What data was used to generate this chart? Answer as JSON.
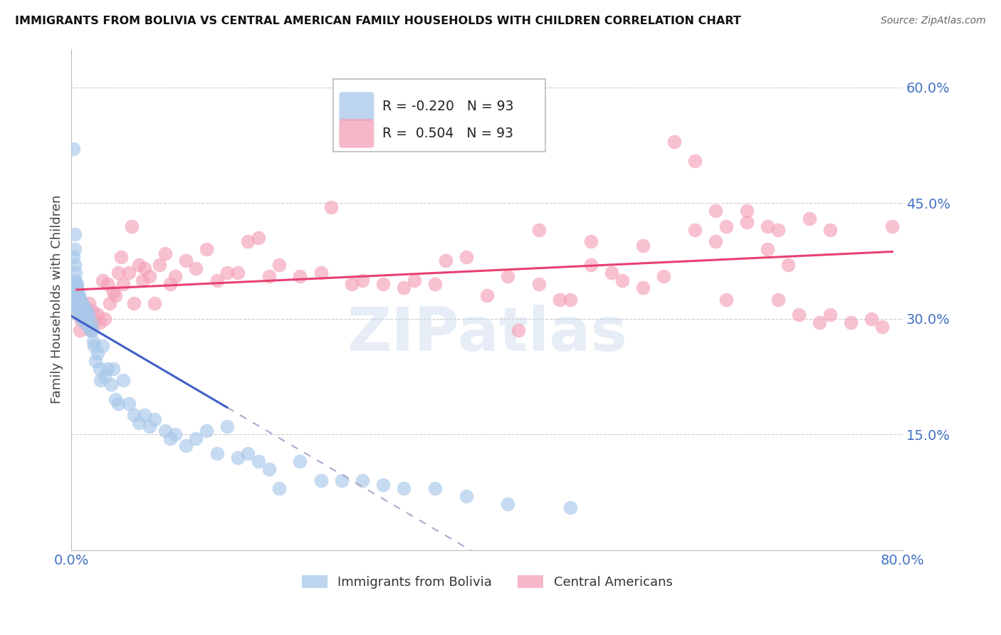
{
  "title": "IMMIGRANTS FROM BOLIVIA VS CENTRAL AMERICAN FAMILY HOUSEHOLDS WITH CHILDREN CORRELATION CHART",
  "source": "Source: ZipAtlas.com",
  "ylabel": "Family Households with Children",
  "yticks": [
    0.0,
    0.15,
    0.3,
    0.45,
    0.6
  ],
  "ytick_labels": [
    "",
    "15.0%",
    "30.0%",
    "45.0%",
    "60.0%"
  ],
  "xlim": [
    0.0,
    0.8
  ],
  "ylim": [
    0.0,
    0.65
  ],
  "bolivia_color": "#a8c8ea",
  "central_color": "#f4a0b8",
  "bolivia_line_color": "#4060c8",
  "central_line_color": "#e84070",
  "bolivia_R": -0.22,
  "bolivia_N": 93,
  "central_R": 0.504,
  "central_N": 93,
  "watermark": "ZIPatlas",
  "legend_bolivia": "Immigrants from Bolivia",
  "legend_central": "Central Americans",
  "bolivia_scatter_x": [
    0.002,
    0.002,
    0.003,
    0.003,
    0.003,
    0.004,
    0.004,
    0.004,
    0.004,
    0.004,
    0.005,
    0.005,
    0.005,
    0.005,
    0.005,
    0.005,
    0.005,
    0.006,
    0.006,
    0.006,
    0.006,
    0.006,
    0.007,
    0.007,
    0.007,
    0.007,
    0.008,
    0.008,
    0.008,
    0.008,
    0.009,
    0.009,
    0.009,
    0.01,
    0.01,
    0.01,
    0.011,
    0.011,
    0.012,
    0.012,
    0.013,
    0.013,
    0.014,
    0.015,
    0.015,
    0.016,
    0.017,
    0.018,
    0.019,
    0.02,
    0.021,
    0.022,
    0.023,
    0.025,
    0.027,
    0.028,
    0.03,
    0.032,
    0.035,
    0.038,
    0.04,
    0.042,
    0.045,
    0.05,
    0.055,
    0.06,
    0.065,
    0.07,
    0.075,
    0.08,
    0.09,
    0.095,
    0.1,
    0.11,
    0.12,
    0.13,
    0.14,
    0.15,
    0.16,
    0.17,
    0.18,
    0.19,
    0.2,
    0.22,
    0.24,
    0.26,
    0.28,
    0.3,
    0.32,
    0.35,
    0.38,
    0.42,
    0.48
  ],
  "bolivia_scatter_y": [
    0.52,
    0.38,
    0.41,
    0.39,
    0.37,
    0.36,
    0.35,
    0.345,
    0.34,
    0.33,
    0.345,
    0.34,
    0.335,
    0.33,
    0.325,
    0.32,
    0.315,
    0.335,
    0.325,
    0.32,
    0.315,
    0.31,
    0.33,
    0.325,
    0.32,
    0.315,
    0.325,
    0.32,
    0.31,
    0.305,
    0.325,
    0.315,
    0.305,
    0.32,
    0.31,
    0.3,
    0.315,
    0.305,
    0.315,
    0.305,
    0.31,
    0.295,
    0.3,
    0.31,
    0.295,
    0.305,
    0.29,
    0.285,
    0.295,
    0.285,
    0.27,
    0.265,
    0.245,
    0.255,
    0.235,
    0.22,
    0.265,
    0.225,
    0.235,
    0.215,
    0.235,
    0.195,
    0.19,
    0.22,
    0.19,
    0.175,
    0.165,
    0.175,
    0.16,
    0.17,
    0.155,
    0.145,
    0.15,
    0.135,
    0.145,
    0.155,
    0.125,
    0.16,
    0.12,
    0.125,
    0.115,
    0.105,
    0.08,
    0.115,
    0.09,
    0.09,
    0.09,
    0.085,
    0.08,
    0.08,
    0.07,
    0.06,
    0.055
  ],
  "central_scatter_x": [
    0.005,
    0.007,
    0.008,
    0.009,
    0.01,
    0.012,
    0.013,
    0.015,
    0.017,
    0.018,
    0.02,
    0.022,
    0.025,
    0.027,
    0.03,
    0.032,
    0.035,
    0.037,
    0.04,
    0.042,
    0.045,
    0.048,
    0.05,
    0.055,
    0.058,
    0.06,
    0.065,
    0.068,
    0.07,
    0.075,
    0.08,
    0.085,
    0.09,
    0.095,
    0.1,
    0.11,
    0.12,
    0.13,
    0.14,
    0.15,
    0.16,
    0.17,
    0.18,
    0.19,
    0.2,
    0.22,
    0.24,
    0.25,
    0.27,
    0.28,
    0.3,
    0.32,
    0.33,
    0.35,
    0.36,
    0.38,
    0.4,
    0.42,
    0.43,
    0.45,
    0.47,
    0.48,
    0.5,
    0.52,
    0.53,
    0.55,
    0.57,
    0.58,
    0.6,
    0.62,
    0.63,
    0.65,
    0.67,
    0.68,
    0.7,
    0.72,
    0.73,
    0.75,
    0.77,
    0.78,
    0.63,
    0.68,
    0.73,
    0.71,
    0.69,
    0.67,
    0.65,
    0.62,
    0.6,
    0.55,
    0.5,
    0.45,
    0.79
  ],
  "central_scatter_y": [
    0.325,
    0.31,
    0.285,
    0.3,
    0.32,
    0.3,
    0.295,
    0.31,
    0.32,
    0.285,
    0.31,
    0.295,
    0.305,
    0.295,
    0.35,
    0.3,
    0.345,
    0.32,
    0.335,
    0.33,
    0.36,
    0.38,
    0.345,
    0.36,
    0.42,
    0.32,
    0.37,
    0.35,
    0.365,
    0.355,
    0.32,
    0.37,
    0.385,
    0.345,
    0.355,
    0.375,
    0.365,
    0.39,
    0.35,
    0.36,
    0.36,
    0.4,
    0.405,
    0.355,
    0.37,
    0.355,
    0.36,
    0.445,
    0.345,
    0.35,
    0.345,
    0.34,
    0.35,
    0.345,
    0.375,
    0.38,
    0.33,
    0.355,
    0.285,
    0.345,
    0.325,
    0.325,
    0.37,
    0.36,
    0.35,
    0.34,
    0.355,
    0.53,
    0.505,
    0.44,
    0.325,
    0.44,
    0.42,
    0.325,
    0.305,
    0.295,
    0.305,
    0.295,
    0.3,
    0.29,
    0.42,
    0.415,
    0.415,
    0.43,
    0.37,
    0.39,
    0.425,
    0.4,
    0.415,
    0.395,
    0.4,
    0.415,
    0.42
  ]
}
